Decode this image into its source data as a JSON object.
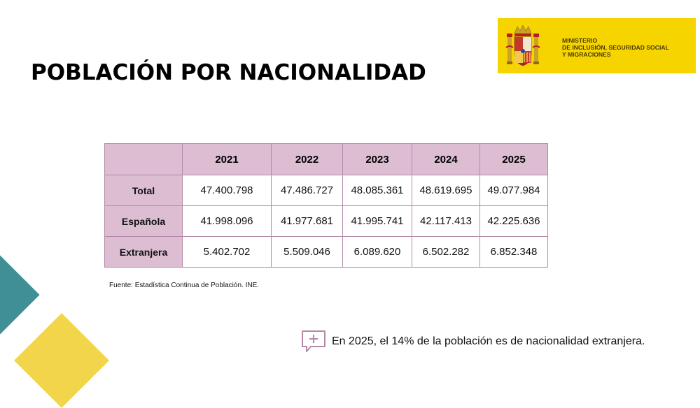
{
  "title": "POBLACIÓN POR NACIONALIDAD",
  "ministry": {
    "line1": "MINISTERIO",
    "line2": "DE INCLUSIÓN, SEGURIDAD SOCIAL",
    "line3": "Y MIGRACIONES",
    "color": "#f6d400"
  },
  "table": {
    "headers": [
      "",
      "2021",
      "2022",
      "2023",
      "2024",
      "2025"
    ],
    "rows": [
      {
        "label": "Total",
        "values": [
          "47.400.798",
          "47.486.727",
          "48.085.361",
          "48.619.695",
          "49.077.984"
        ]
      },
      {
        "label": "Española",
        "values": [
          "41.998.096",
          "41.977.681",
          "41.995.741",
          "42.117.413",
          "42.225.636"
        ]
      },
      {
        "label": "Extranjera",
        "values": [
          "5.402.702",
          "5.509.046",
          "6.089.620",
          "6.502.282",
          "6.852.348"
        ]
      }
    ],
    "header_color": "#dcbdd2",
    "border_color": "#b58aa8"
  },
  "source": "Fuente: Estadística Continua de Población. INE.",
  "callout": {
    "icon": "speech-bubble-plus-icon",
    "text": "En 2025, el 14% de la población es de nacionalidad extranjera."
  },
  "decor": {
    "teal": "#3f8f96",
    "yellow": "#f2d54a"
  }
}
